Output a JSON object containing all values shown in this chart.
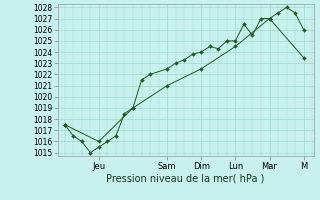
{
  "background_color": "#c8f0ec",
  "grid_color": "#99ddcc",
  "line_color": "#1a5c1a",
  "marker_color": "#1a5c1a",
  "ylabel_min": 1015,
  "ylabel_max": 1028,
  "xlabel": "Pression niveau de la mer( hPa )",
  "x_ticks_labels": [
    "Jeu",
    "Sam",
    "Dim",
    "Lun",
    "Mar",
    "M"
  ],
  "x_ticks_pos": [
    24,
    72,
    96,
    120,
    144,
    168
  ],
  "series1_x": [
    0,
    6,
    12,
    18,
    24,
    30,
    36,
    42,
    48,
    54,
    60,
    72,
    78,
    84,
    90,
    96,
    102,
    108,
    114,
    120,
    126,
    132,
    138,
    144,
    150,
    156,
    162,
    168
  ],
  "series1_y": [
    1017.5,
    1016.5,
    1016.0,
    1015.0,
    1015.5,
    1016.0,
    1016.5,
    1018.5,
    1019.0,
    1021.5,
    1022.0,
    1022.5,
    1023.0,
    1023.3,
    1023.8,
    1024.0,
    1024.5,
    1024.3,
    1025.0,
    1025.0,
    1026.5,
    1025.5,
    1027.0,
    1027.0,
    1027.5,
    1028.0,
    1027.5,
    1026.0
  ],
  "series2_x": [
    0,
    24,
    48,
    72,
    96,
    120,
    144,
    168
  ],
  "series2_y": [
    1017.5,
    1016.0,
    1019.0,
    1021.0,
    1022.5,
    1024.5,
    1027.0,
    1023.5
  ]
}
